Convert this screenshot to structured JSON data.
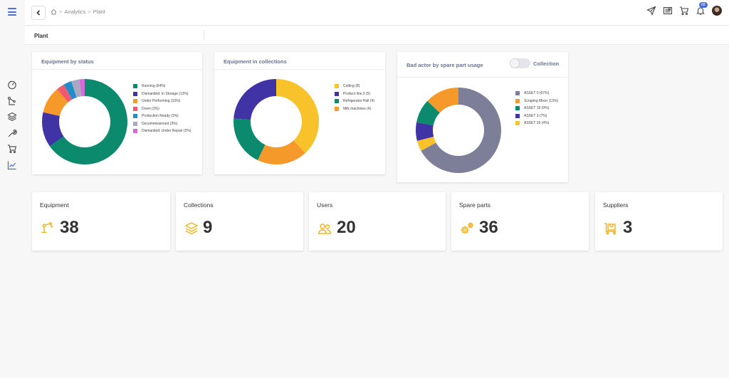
{
  "breadcrumb": {
    "items": [
      "Analytics",
      "Plant"
    ]
  },
  "header": {
    "notification_count": "68"
  },
  "page": {
    "title": "Plant"
  },
  "charts": {
    "status": {
      "title": "Equipment by status",
      "legend": [
        "Running (64%)",
        "Dismantled: In Storage (13%)",
        "Under Performing (10%)",
        "Down (3%)",
        "Production Ready (3%)",
        "Decommissioned (3%)",
        "Dismantled: Under Repair (2%)"
      ]
    },
    "collections": {
      "title": "Equipment in collections",
      "legend": [
        "Cutting (8)",
        "Product line 3 (5)",
        "Refrigerator Hall (4)",
        "Milk machines (4)"
      ]
    },
    "bad_actor": {
      "title": "Bad actor by spare part usage",
      "toggle_label": "Collection",
      "legend": [
        "ASSET 0 (67%)",
        "Scraping Mixer (13%)",
        "ASSET 19 (9%)",
        "ASSET 3 (7%)",
        "ASSET 16 (4%)"
      ]
    }
  },
  "chart_data": [
    {
      "type": "pie",
      "title": "Equipment by status",
      "categories": [
        "Running",
        "Dismantled: In Storage",
        "Under Performing",
        "Down",
        "Production Ready",
        "Decommissioned",
        "Dismantled: Under Repair"
      ],
      "values": [
        64,
        13,
        10,
        3,
        3,
        3,
        2
      ],
      "colors": [
        "#0b8a6e",
        "#3f33a6",
        "#f59a2a",
        "#f05a6e",
        "#1f8ec9",
        "#a9a9c2",
        "#d56ad9"
      ]
    },
    {
      "type": "pie",
      "title": "Equipment in collections",
      "categories": [
        "Cutting",
        "Product line 3",
        "Refrigerator Hall",
        "Milk machines"
      ],
      "values": [
        8,
        5,
        4,
        4
      ],
      "draw_order": [
        0,
        3,
        2,
        1
      ],
      "colors": [
        "#f8c22a",
        "#3f33a6",
        "#0b8a6e",
        "#f59a2a"
      ]
    },
    {
      "type": "pie",
      "title": "Bad actor by spare part usage",
      "categories": [
        "ASSET 0",
        "Scraping Mixer",
        "ASSET 19",
        "ASSET 3",
        "ASSET 16"
      ],
      "values": [
        67,
        13,
        9,
        7,
        4
      ],
      "draw_order": [
        0,
        4,
        3,
        2,
        1
      ],
      "colors": [
        "#7d7f99",
        "#f59a2a",
        "#0b8a6e",
        "#3f33a6",
        "#f8c22a"
      ]
    }
  ],
  "stats": [
    {
      "label": "Equipment",
      "value": "38",
      "icon": "robot-arm-icon"
    },
    {
      "label": "Collections",
      "value": "9",
      "icon": "layers-icon"
    },
    {
      "label": "Users",
      "value": "20",
      "icon": "users-icon"
    },
    {
      "label": "Spare parts",
      "value": "36",
      "icon": "gears-icon"
    },
    {
      "label": "Suppliers",
      "value": "3",
      "icon": "cart-box-icon"
    }
  ],
  "colors": {
    "accent": "#4a6fd8",
    "icon_yellow": "#f3b21b",
    "title_gray": "#6a7390"
  }
}
